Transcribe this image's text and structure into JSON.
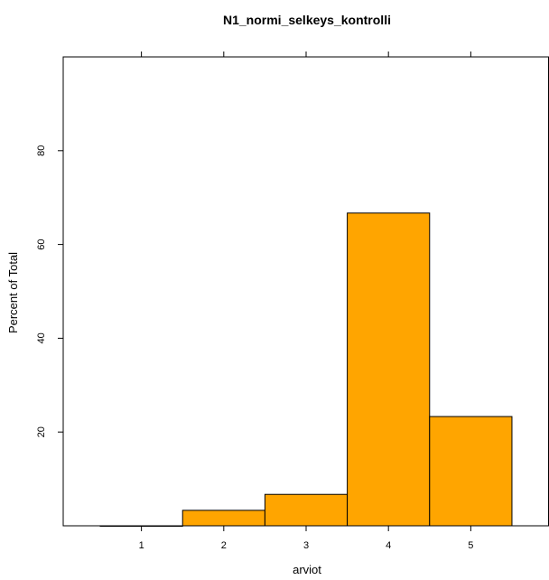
{
  "chart_data": {
    "type": "bar",
    "title": "N1_normi_selkeys_kontrolli",
    "xlabel": "arviot",
    "ylabel": "Percent of Total",
    "categories": [
      "1",
      "2",
      "3",
      "4",
      "5"
    ],
    "x": [
      1,
      2,
      3,
      4,
      5
    ],
    "values": [
      0,
      3.3,
      6.7,
      66.7,
      23.3
    ],
    "xlim": [
      0.05,
      5.95
    ],
    "ylim": [
      0,
      100
    ],
    "x_ticks": [
      1,
      2,
      3,
      4,
      5
    ],
    "y_ticks": [
      20,
      40,
      60,
      80
    ],
    "bar_color": "#FFA500",
    "grid": false
  }
}
